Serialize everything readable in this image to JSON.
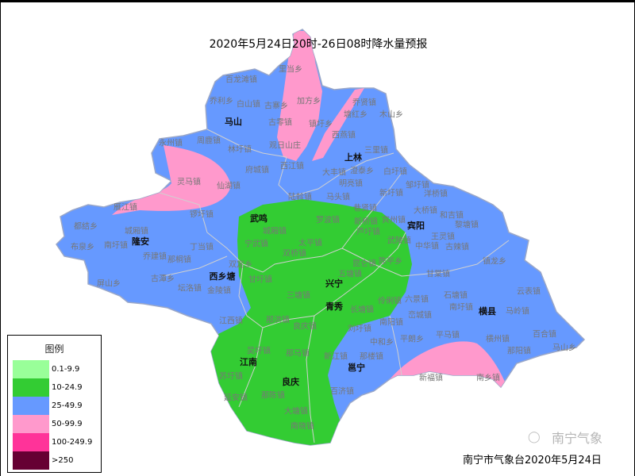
{
  "title": "2020年5月24日20时-26日08时降水量预报",
  "legend": {
    "title": "图例",
    "items": [
      {
        "label": "0.1-9.9",
        "color": "#99FF99"
      },
      {
        "label": "10-24.9",
        "color": "#33CC33"
      },
      {
        "label": "25-49.9",
        "color": "#6699FF"
      },
      {
        "label": "50-99.9",
        "color": "#FF99CC"
      },
      {
        "label": "100-249.9",
        "color": "#FF3399"
      },
      {
        "label": ">250",
        "color": "#660033"
      }
    ]
  },
  "counties": [
    "马山",
    "上林",
    "武鸣",
    "宾阳",
    "隆安",
    "西乡塘",
    "兴宁",
    "青秀",
    "江南",
    "良庆",
    "邕宁",
    "横县"
  ],
  "towns": [
    "里当乡",
    "百龙滩镇",
    "乔利乡",
    "白山镇",
    "古寨乡",
    "加方乡",
    "乔贤镇",
    "塘红乡",
    "木山乡",
    "古零镇",
    "镇圩乡",
    "西燕镇",
    "永州镇",
    "周鹿镇",
    "林圩镇",
    "观日山庄",
    "三里镇",
    "府城镇",
    "西江镇",
    "大丰镇",
    "澄泰乡",
    "灵马镇",
    "仙湖镇",
    "明亮镇",
    "白圩镇",
    "陆斡镇",
    "马头镇",
    "新圩镇",
    "邹圩镇",
    "洋桥镇",
    "雁江镇",
    "锣圩镇",
    "巷贤镇",
    "罗波镇",
    "新桥镇",
    "宾州镇",
    "大桥镇",
    "和吉镇",
    "黎塘镇",
    "王灵镇",
    "芦圩镇",
    "武陵镇",
    "中华镇",
    "古辣镇",
    "昆仑镇",
    "陈平乡",
    "镇龙乡",
    "甘棠镇",
    "石塘镇",
    "云表镇",
    "五塘镇",
    "都结乡",
    "城厢镇",
    "布泉乡",
    "南圩镇",
    "乔建镇",
    "丁当镇",
    "那桐镇",
    "双定乡",
    "屏山乡",
    "古潭乡",
    "坛洛镇",
    "金陵镇",
    "江西镇",
    "城厢镇",
    "宁武镇",
    "太平镇",
    "双桥镇",
    "甘圩镇",
    "三塘镇",
    "那洪镇",
    "长塘镇",
    "伶俐镇",
    "六景镇",
    "峦城镇",
    "南阳镇",
    "良庆镇",
    "刘圩镇",
    "中和乡",
    "平朗乡",
    "吴圩镇",
    "那马镇",
    "新江镇",
    "那楼镇",
    "苏圩镇",
    "百济镇",
    "延安镇",
    "那陈镇",
    "大塘镇",
    "南晓镇",
    "南圩镇",
    "马岭镇",
    "平马镇",
    "横州镇",
    "百合镇",
    "马山乡",
    "那阳镇",
    "新福镇",
    "南乡镇"
  ],
  "footer": "南宁市气象台2020年5月24日",
  "watermark": "南宁气象",
  "watermark_icon": "wechat-icon"
}
